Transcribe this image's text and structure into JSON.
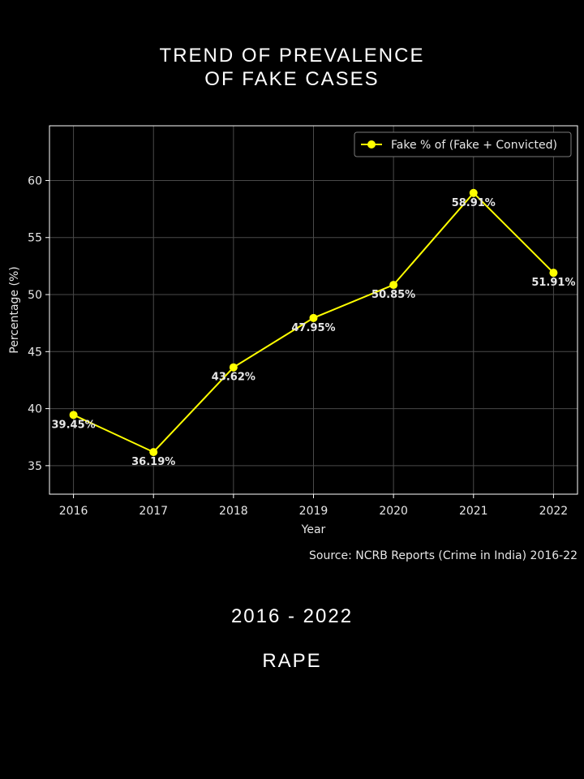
{
  "header": {
    "title_line1": "TREND OF PREVALENCE",
    "title_line2": "OF FAKE CASES"
  },
  "footer": {
    "period": "2016 - 2022",
    "crime": "RAPE"
  },
  "colors": {
    "background": "#000000",
    "line": "#ffff00",
    "grid": "#4a4a4a",
    "frame": "#ffffff",
    "text": "#e6e6e6"
  },
  "chart_data": {
    "type": "line",
    "x": [
      2016,
      2017,
      2018,
      2019,
      2020,
      2021,
      2022
    ],
    "xtick_labels": [
      "2016",
      "2017",
      "2018",
      "2019",
      "2020",
      "2021",
      "2022"
    ],
    "series": [
      {
        "name": "Fake % of (Fake + Convicted)",
        "values": [
          39.45,
          36.19,
          43.62,
          47.95,
          50.85,
          58.91,
          51.91
        ],
        "labels": [
          "39.45%",
          "36.19%",
          "43.62%",
          "47.95%",
          "50.85%",
          "58.91%",
          "51.91%"
        ],
        "color": "#ffff00",
        "marker": "circle"
      }
    ],
    "xlabel": "Year",
    "ylabel": "Percentage (%)",
    "xlim": [
      2015.7,
      2022.3
    ],
    "ylim": [
      32.5,
      64.8
    ],
    "yticks": [
      35,
      40,
      45,
      50,
      55,
      60
    ],
    "grid": true,
    "legend_position": "top-right",
    "source": "Source: NCRB Reports (Crime in India) 2016-22"
  }
}
